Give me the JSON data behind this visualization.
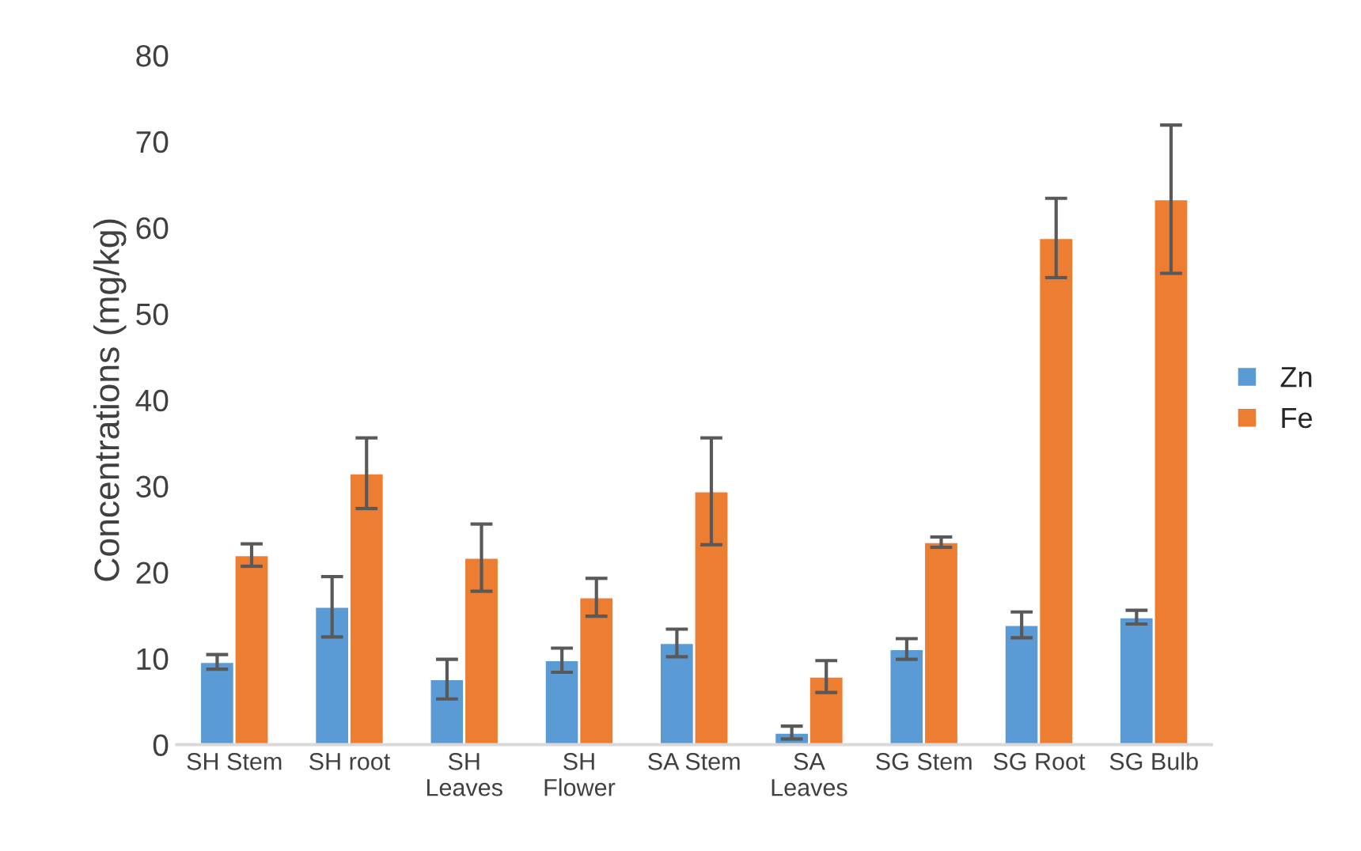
{
  "chart_data": {
    "type": "bar",
    "ylabel": "Concentrations (mg/kg)",
    "categories": [
      "SH Stem",
      "SH root",
      "SH\nLeaves",
      "SH\nFlower",
      "SA Stem",
      "SA\nLeaves",
      "SG Stem",
      "SG Root",
      "SG Bulb"
    ],
    "series": [
      {
        "name": "Zn",
        "color": "#5b9bd5",
        "values": [
          9.6,
          16.0,
          7.6,
          9.8,
          11.8,
          1.4,
          11.1,
          13.9,
          14.8
        ],
        "errors": [
          0.85,
          3.5,
          2.3,
          1.4,
          1.6,
          0.75,
          1.2,
          1.5,
          0.8
        ]
      },
      {
        "name": "Fe",
        "color": "#ed7d31",
        "values": [
          22.0,
          31.5,
          21.7,
          17.1,
          29.4,
          7.9,
          23.5,
          58.8,
          63.3
        ],
        "errors": [
          1.3,
          4.1,
          3.9,
          2.2,
          6.2,
          1.85,
          0.6,
          4.6,
          8.6
        ]
      }
    ],
    "ylim": [
      0,
      80
    ],
    "yticks": [
      0,
      10,
      20,
      30,
      40,
      50,
      60,
      70,
      80
    ],
    "grid": false,
    "legend": "right"
  }
}
